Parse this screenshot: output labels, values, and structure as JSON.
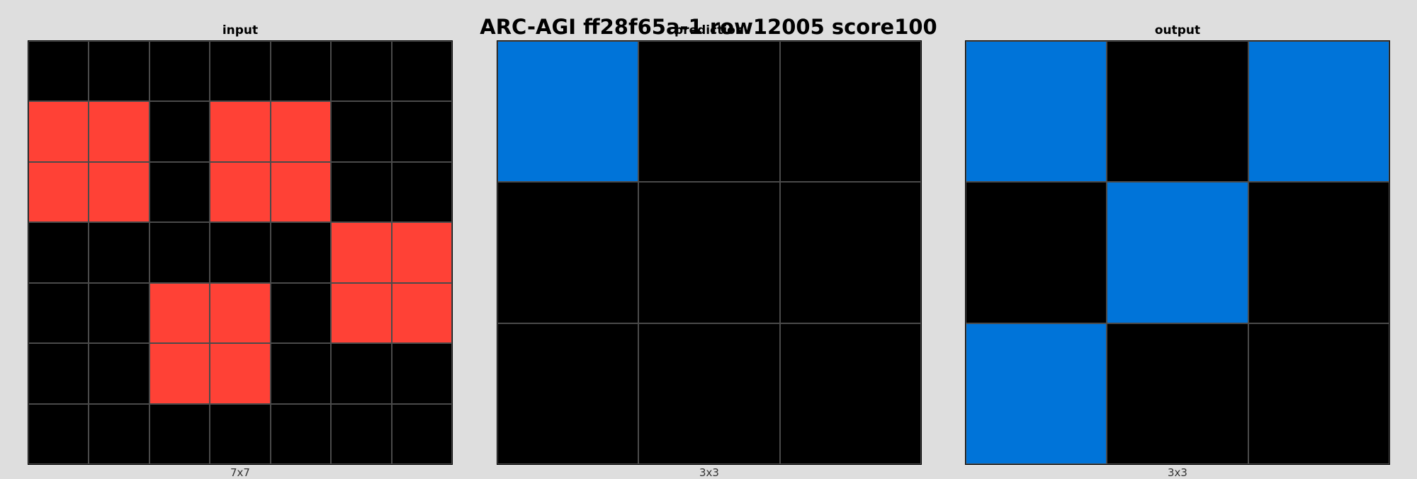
{
  "title": "ARC-AGI ff28f65a-1 row12005 score100",
  "palette": {
    "0": "#000000",
    "1": "#0074d9",
    "2": "#ff4136"
  },
  "panels": [
    {
      "title": "input",
      "dims": "7x7",
      "grid": [
        [
          0,
          0,
          0,
          0,
          0,
          0,
          0
        ],
        [
          2,
          2,
          0,
          2,
          2,
          0,
          0
        ],
        [
          2,
          2,
          0,
          2,
          2,
          0,
          0
        ],
        [
          0,
          0,
          0,
          0,
          0,
          2,
          2
        ],
        [
          0,
          0,
          2,
          2,
          0,
          2,
          2
        ],
        [
          0,
          0,
          2,
          2,
          0,
          0,
          0
        ],
        [
          0,
          0,
          0,
          0,
          0,
          0,
          0
        ]
      ]
    },
    {
      "title": "prediction",
      "dims": "3x3",
      "grid": [
        [
          1,
          0,
          0
        ],
        [
          0,
          0,
          0
        ],
        [
          0,
          0,
          0
        ]
      ]
    },
    {
      "title": "output",
      "dims": "3x3",
      "grid": [
        [
          1,
          0,
          1
        ],
        [
          0,
          1,
          0
        ],
        [
          1,
          0,
          0
        ]
      ]
    }
  ]
}
